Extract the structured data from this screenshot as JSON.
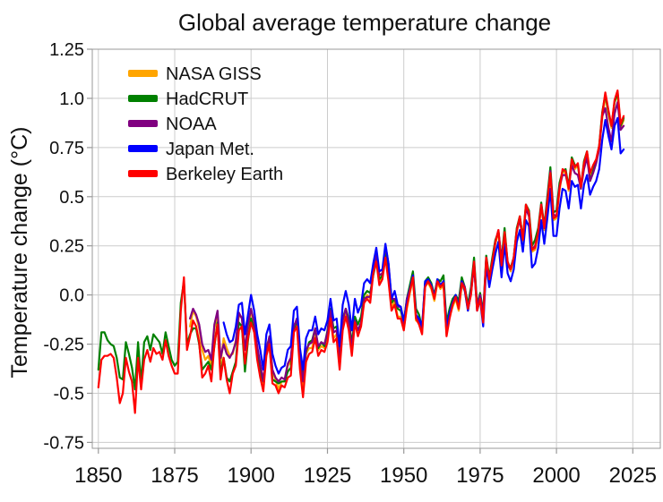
{
  "chart_data": {
    "type": "line",
    "title": "Global average temperature change",
    "xlabel": "",
    "ylabel": "Temperature change (°C)",
    "xlim": [
      1848,
      2034
    ],
    "ylim": [
      -0.78,
      1.25
    ],
    "x_ticks": [
      1850,
      1875,
      1900,
      1925,
      1950,
      1975,
      2000,
      2025
    ],
    "y_ticks": [
      1.25,
      1.0,
      0.75,
      0.5,
      0.25,
      0.0,
      -0.25,
      -0.5,
      -0.75
    ],
    "y_tick_labels": [
      "1.25",
      "1.0",
      "0.75",
      "0.5",
      "0.25",
      "0.0",
      "-0.25",
      "-0.5",
      "-0.75"
    ],
    "grid": true,
    "legend_position": "upper left inside",
    "grid_color": "#cccccc",
    "axis_color": "#999999",
    "series": [
      {
        "name": "NASA GISS",
        "color": "#FFA500",
        "start_year": 1880,
        "end_year": 2022,
        "values": [
          -0.16,
          -0.08,
          -0.11,
          -0.17,
          -0.28,
          -0.33,
          -0.31,
          -0.36,
          -0.17,
          -0.1,
          -0.35,
          -0.22,
          -0.27,
          -0.31,
          -0.3,
          -0.23,
          -0.11,
          -0.11,
          -0.27,
          -0.17,
          -0.08,
          -0.15,
          -0.28,
          -0.37,
          -0.47,
          -0.26,
          -0.22,
          -0.39,
          -0.43,
          -0.48,
          -0.44,
          -0.44,
          -0.36,
          -0.34,
          -0.15,
          -0.14,
          -0.36,
          -0.46,
          -0.3,
          -0.27,
          -0.27,
          -0.19,
          -0.28,
          -0.26,
          -0.27,
          -0.22,
          -0.1,
          -0.22,
          -0.2,
          -0.36,
          -0.16,
          -0.09,
          -0.16,
          -0.29,
          -0.12,
          -0.2,
          -0.15,
          -0.03,
          0.0,
          -0.02,
          0.13,
          0.19,
          0.07,
          0.09,
          0.2,
          0.09,
          -0.07,
          -0.03,
          -0.11,
          -0.11,
          -0.17,
          -0.07,
          0.01,
          0.08,
          -0.13,
          -0.14,
          -0.19,
          0.05,
          0.06,
          0.03,
          -0.03,
          0.06,
          0.03,
          0.05,
          -0.2,
          -0.11,
          -0.06,
          -0.02,
          -0.08,
          0.05,
          0.02,
          -0.08,
          0.01,
          0.16,
          -0.07,
          -0.01,
          -0.12,
          0.18,
          0.07,
          0.16,
          0.26,
          0.32,
          0.14,
          0.31,
          0.16,
          0.12,
          0.18,
          0.32,
          0.39,
          0.27,
          0.45,
          0.41,
          0.22,
          0.23,
          0.31,
          0.45,
          0.33,
          0.46,
          0.61,
          0.38,
          0.39,
          0.53,
          0.63,
          0.62,
          0.53,
          0.68,
          0.64,
          0.66,
          0.54,
          0.66,
          0.72,
          0.61,
          0.65,
          0.68,
          0.75,
          0.9,
          1.01,
          0.92,
          0.85,
          0.98,
          1.02,
          0.85,
          0.89
        ]
      },
      {
        "name": "HadCRUT",
        "color": "#008000",
        "start_year": 1850,
        "end_year": 2022,
        "values": [
          -0.38,
          -0.19,
          -0.19,
          -0.23,
          -0.25,
          -0.26,
          -0.32,
          -0.42,
          -0.43,
          -0.24,
          -0.3,
          -0.37,
          -0.48,
          -0.24,
          -0.45,
          -0.24,
          -0.21,
          -0.28,
          -0.2,
          -0.22,
          -0.24,
          -0.3,
          -0.19,
          -0.26,
          -0.33,
          -0.36,
          -0.34,
          -0.04,
          0.07,
          -0.25,
          -0.2,
          -0.17,
          -0.17,
          -0.25,
          -0.38,
          -0.36,
          -0.34,
          -0.38,
          -0.26,
          -0.14,
          -0.4,
          -0.32,
          -0.42,
          -0.44,
          -0.39,
          -0.34,
          -0.14,
          -0.16,
          -0.39,
          -0.23,
          -0.12,
          -0.18,
          -0.31,
          -0.39,
          -0.44,
          -0.3,
          -0.25,
          -0.43,
          -0.44,
          -0.45,
          -0.44,
          -0.44,
          -0.39,
          -0.37,
          -0.18,
          -0.12,
          -0.33,
          -0.42,
          -0.29,
          -0.24,
          -0.23,
          -0.17,
          -0.27,
          -0.24,
          -0.26,
          -0.18,
          -0.07,
          -0.17,
          -0.16,
          -0.3,
          -0.12,
          -0.07,
          -0.12,
          -0.25,
          -0.11,
          -0.15,
          -0.11,
          0.0,
          0.02,
          0.01,
          0.1,
          0.17,
          0.08,
          0.1,
          0.21,
          0.12,
          -0.04,
          -0.02,
          -0.07,
          -0.08,
          -0.14,
          -0.02,
          0.05,
          0.12,
          -0.07,
          -0.1,
          -0.17,
          0.07,
          0.09,
          0.06,
          0.0,
          0.08,
          0.07,
          0.1,
          -0.14,
          -0.07,
          -0.02,
          0.0,
          -0.03,
          0.09,
          0.04,
          -0.05,
          0.04,
          0.19,
          -0.05,
          0.01,
          -0.09,
          0.2,
          0.09,
          0.19,
          0.28,
          0.32,
          0.18,
          0.34,
          0.16,
          0.14,
          0.19,
          0.34,
          0.4,
          0.29,
          0.46,
          0.43,
          0.25,
          0.28,
          0.34,
          0.47,
          0.35,
          0.5,
          0.65,
          0.42,
          0.43,
          0.57,
          0.63,
          0.64,
          0.55,
          0.7,
          0.66,
          0.66,
          0.55,
          0.68,
          0.73,
          0.58,
          0.63,
          0.68,
          0.76,
          0.93,
          1.02,
          0.93,
          0.86,
          0.98,
          1.03,
          0.86,
          0.9
        ]
      },
      {
        "name": "NOAA",
        "color": "#800080",
        "start_year": 1880,
        "end_year": 2022,
        "values": [
          -0.12,
          -0.07,
          -0.1,
          -0.15,
          -0.25,
          -0.29,
          -0.28,
          -0.33,
          -0.15,
          -0.08,
          -0.32,
          -0.25,
          -0.3,
          -0.32,
          -0.29,
          -0.24,
          -0.09,
          -0.12,
          -0.28,
          -0.15,
          -0.07,
          -0.14,
          -0.26,
          -0.35,
          -0.44,
          -0.28,
          -0.21,
          -0.38,
          -0.42,
          -0.44,
          -0.42,
          -0.43,
          -0.35,
          -0.32,
          -0.16,
          -0.12,
          -0.33,
          -0.44,
          -0.28,
          -0.25,
          -0.24,
          -0.17,
          -0.26,
          -0.24,
          -0.25,
          -0.19,
          -0.08,
          -0.19,
          -0.18,
          -0.33,
          -0.13,
          -0.07,
          -0.14,
          -0.27,
          -0.13,
          -0.18,
          -0.14,
          -0.02,
          -0.01,
          -0.01,
          0.11,
          0.21,
          0.1,
          0.11,
          0.25,
          0.16,
          -0.02,
          -0.02,
          -0.06,
          -0.06,
          -0.15,
          -0.02,
          0.03,
          0.09,
          -0.11,
          -0.13,
          -0.18,
          0.06,
          0.07,
          0.04,
          -0.01,
          0.07,
          0.04,
          0.07,
          -0.19,
          -0.1,
          -0.04,
          -0.01,
          -0.06,
          0.07,
          0.04,
          -0.07,
          0.02,
          0.17,
          -0.06,
          0.0,
          -0.1,
          0.19,
          0.08,
          0.17,
          0.27,
          0.33,
          0.18,
          0.3,
          0.15,
          0.13,
          0.19,
          0.33,
          0.38,
          0.28,
          0.44,
          0.4,
          0.23,
          0.25,
          0.32,
          0.46,
          0.34,
          0.48,
          0.63,
          0.41,
          0.4,
          0.55,
          0.61,
          0.61,
          0.55,
          0.66,
          0.62,
          0.61,
          0.54,
          0.64,
          0.7,
          0.58,
          0.62,
          0.67,
          0.74,
          0.91,
          0.95,
          0.85,
          0.78,
          0.92,
          0.98,
          0.84,
          0.86
        ]
      },
      {
        "name": "Japan Met.",
        "color": "#0000FF",
        "start_year": 1891,
        "end_year": 2022,
        "values": [
          -0.14,
          -0.2,
          -0.24,
          -0.23,
          -0.16,
          -0.05,
          -0.04,
          -0.2,
          -0.1,
          0.0,
          -0.08,
          -0.2,
          -0.28,
          -0.38,
          -0.2,
          -0.15,
          -0.3,
          -0.36,
          -0.4,
          -0.37,
          -0.36,
          -0.28,
          -0.26,
          -0.08,
          -0.06,
          -0.27,
          -0.38,
          -0.22,
          -0.18,
          -0.18,
          -0.11,
          -0.2,
          -0.17,
          -0.18,
          -0.13,
          -0.02,
          -0.13,
          -0.12,
          -0.26,
          -0.05,
          0.02,
          -0.05,
          -0.18,
          -0.02,
          -0.09,
          -0.05,
          0.06,
          0.08,
          0.06,
          0.16,
          0.24,
          0.12,
          0.13,
          0.26,
          0.16,
          -0.02,
          0.02,
          -0.05,
          -0.06,
          -0.13,
          -0.04,
          0.03,
          0.1,
          -0.1,
          -0.12,
          -0.16,
          0.07,
          0.08,
          0.05,
          -0.01,
          0.08,
          0.05,
          0.07,
          -0.17,
          -0.09,
          -0.04,
          0.0,
          -0.06,
          0.07,
          0.02,
          -0.08,
          0.01,
          0.15,
          -0.08,
          -0.02,
          -0.16,
          0.15,
          0.04,
          0.13,
          0.21,
          0.27,
          0.09,
          0.26,
          0.11,
          0.07,
          0.13,
          0.27,
          0.33,
          0.22,
          0.38,
          0.35,
          0.14,
          0.16,
          0.24,
          0.38,
          0.26,
          0.39,
          0.54,
          0.3,
          0.3,
          0.44,
          0.54,
          0.53,
          0.44,
          0.58,
          0.55,
          0.56,
          0.44,
          0.56,
          0.61,
          0.51,
          0.55,
          0.58,
          0.64,
          0.79,
          0.89,
          0.81,
          0.74,
          0.86,
          0.9,
          0.72,
          0.74
        ]
      },
      {
        "name": "Berkeley Earth",
        "color": "#FF0000",
        "start_year": 1850,
        "end_year": 2022,
        "values": [
          -0.47,
          -0.33,
          -0.31,
          -0.31,
          -0.3,
          -0.32,
          -0.42,
          -0.55,
          -0.5,
          -0.32,
          -0.39,
          -0.44,
          -0.6,
          -0.32,
          -0.48,
          -0.33,
          -0.28,
          -0.34,
          -0.27,
          -0.3,
          -0.29,
          -0.33,
          -0.23,
          -0.31,
          -0.36,
          -0.4,
          -0.4,
          -0.08,
          0.09,
          -0.28,
          -0.21,
          -0.13,
          -0.16,
          -0.24,
          -0.42,
          -0.4,
          -0.36,
          -0.44,
          -0.25,
          -0.15,
          -0.43,
          -0.32,
          -0.43,
          -0.5,
          -0.4,
          -0.36,
          -0.18,
          -0.16,
          -0.35,
          -0.22,
          -0.14,
          -0.19,
          -0.33,
          -0.42,
          -0.49,
          -0.31,
          -0.25,
          -0.45,
          -0.46,
          -0.5,
          -0.46,
          -0.47,
          -0.42,
          -0.41,
          -0.19,
          -0.16,
          -0.38,
          -0.52,
          -0.34,
          -0.3,
          -0.29,
          -0.22,
          -0.31,
          -0.28,
          -0.29,
          -0.24,
          -0.12,
          -0.24,
          -0.22,
          -0.38,
          -0.18,
          -0.11,
          -0.18,
          -0.31,
          -0.14,
          -0.21,
          -0.16,
          -0.04,
          -0.02,
          -0.04,
          0.11,
          0.17,
          0.05,
          0.08,
          0.19,
          0.07,
          -0.08,
          -0.05,
          -0.12,
          -0.12,
          -0.18,
          -0.06,
          0.02,
          0.09,
          -0.12,
          -0.15,
          -0.2,
          0.04,
          0.07,
          0.04,
          -0.02,
          0.07,
          0.04,
          0.06,
          -0.21,
          -0.12,
          -0.05,
          -0.01,
          -0.07,
          0.06,
          0.03,
          -0.07,
          0.0,
          0.17,
          -0.08,
          -0.02,
          -0.14,
          0.19,
          0.08,
          0.17,
          0.27,
          0.33,
          0.15,
          0.32,
          0.17,
          0.13,
          0.19,
          0.33,
          0.4,
          0.28,
          0.46,
          0.42,
          0.23,
          0.24,
          0.32,
          0.46,
          0.34,
          0.47,
          0.62,
          0.39,
          0.4,
          0.54,
          0.64,
          0.63,
          0.54,
          0.69,
          0.65,
          0.67,
          0.55,
          0.67,
          0.73,
          0.62,
          0.66,
          0.69,
          0.76,
          0.92,
          1.03,
          0.94,
          0.86,
          0.99,
          1.04,
          0.87,
          0.91
        ]
      }
    ]
  }
}
